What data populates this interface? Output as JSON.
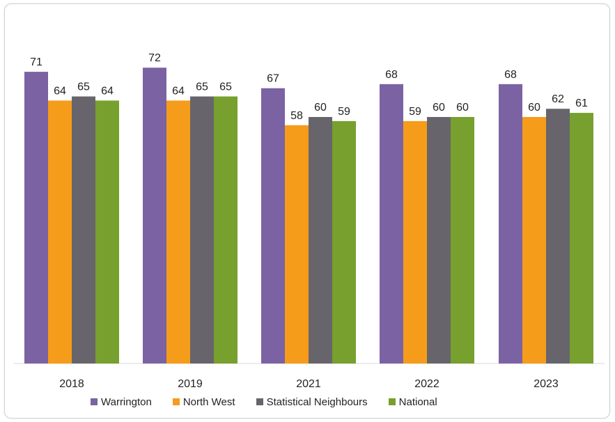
{
  "chart_data": {
    "type": "bar",
    "categories": [
      "2018",
      "2019",
      "2021",
      "2022",
      "2023"
    ],
    "series": [
      {
        "name": "Warrington",
        "color": "#7b62a3",
        "values": [
          71,
          72,
          67,
          68,
          68
        ]
      },
      {
        "name": "North West",
        "color": "#f59c1a",
        "values": [
          64,
          64,
          58,
          59,
          60
        ]
      },
      {
        "name": "Statistical Neighbours",
        "color": "#67656b",
        "values": [
          65,
          65,
          60,
          60,
          62
        ]
      },
      {
        "name": "National",
        "color": "#77a02e",
        "values": [
          64,
          65,
          59,
          60,
          61
        ]
      }
    ],
    "legend_position": "bottom",
    "grid": false,
    "data_labels": true
  }
}
